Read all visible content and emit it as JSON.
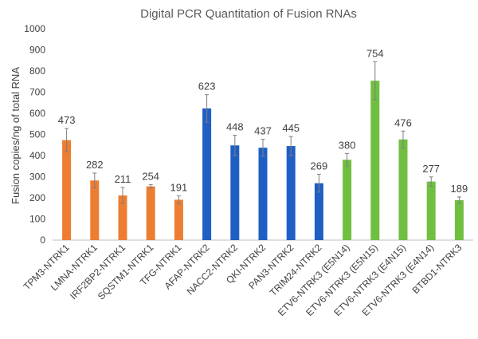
{
  "chart_data": {
    "type": "bar",
    "title": "Digital PCR Quantitation of Fusion RNAs",
    "ylabel": "Fusion copies/ng of total RNA",
    "xlabel": "",
    "ylim": [
      0,
      1000
    ],
    "yticks": [
      0,
      100,
      200,
      300,
      400,
      500,
      600,
      700,
      800,
      900,
      1000
    ],
    "grid": false,
    "categories": [
      "TPM3-NTRK1",
      "LMNA-NTRK1",
      "IRF2BP2-NTRK1",
      "SQSTM1-NTRK1",
      "TFG-NTRK1",
      "AFAP-NTRK2",
      "NACC2-NTRK2",
      "QKI-NTRK2",
      "PAN3-NTRK2",
      "TRIM24-NTRK2",
      "ETV6-NTRK3 (E5N14)",
      "ETV6-NTRK3 (E5N15)",
      "ETV6-NTRK3 (E4N15)",
      "ETV6-NTRK3 (E4N14)",
      "BTBD1-NTRK3"
    ],
    "values": [
      473,
      282,
      211,
      254,
      191,
      623,
      448,
      437,
      445,
      269,
      380,
      754,
      476,
      277,
      189
    ],
    "errors": [
      55,
      35,
      38,
      8,
      18,
      65,
      48,
      40,
      45,
      42,
      30,
      90,
      40,
      22,
      15
    ],
    "bar_colors": [
      "#ED7D31",
      "#ED7D31",
      "#ED7D31",
      "#ED7D31",
      "#ED7D31",
      "#1F5FC4",
      "#1F5FC4",
      "#1F5FC4",
      "#1F5FC4",
      "#1F5FC4",
      "#70BF41",
      "#70BF41",
      "#70BF41",
      "#70BF41",
      "#70BF41"
    ],
    "data_labels": [
      "473",
      "282",
      "211",
      "254",
      "191",
      "623",
      "448",
      "437",
      "445",
      "269",
      "380",
      "754",
      "476",
      "277",
      "189"
    ]
  }
}
